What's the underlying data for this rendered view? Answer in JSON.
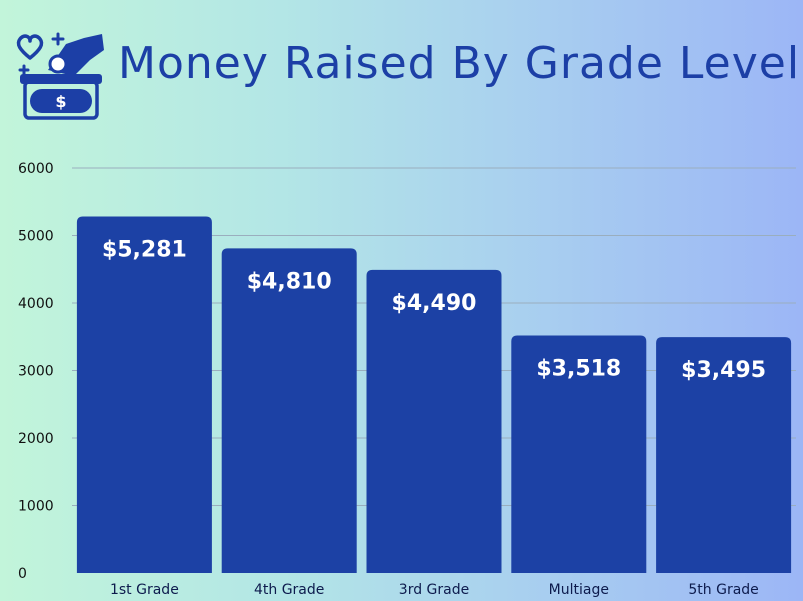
{
  "chart_data": {
    "type": "bar",
    "title": "Money Raised By Grade Level",
    "categories": [
      "1st Grade",
      "4th Grade",
      "3rd Grade",
      "Multiage",
      "5th Grade"
    ],
    "values": [
      5281,
      4810,
      4490,
      3518,
      3495
    ],
    "data_labels": [
      "$5,281",
      "$4,810",
      "$4,490",
      "$3,518",
      "$3,495"
    ],
    "xlabel": "",
    "ylabel": "",
    "ylim": [
      0,
      6000
    ],
    "yticks": [
      0,
      1000,
      2000,
      3000,
      4000,
      5000,
      6000
    ],
    "grid": true,
    "legend": "none",
    "colors": {
      "bar": "#1c41a5",
      "title": "#1c3fa6",
      "grid": "#9aaebe"
    },
    "logo_icon": "donation-box-icon"
  }
}
